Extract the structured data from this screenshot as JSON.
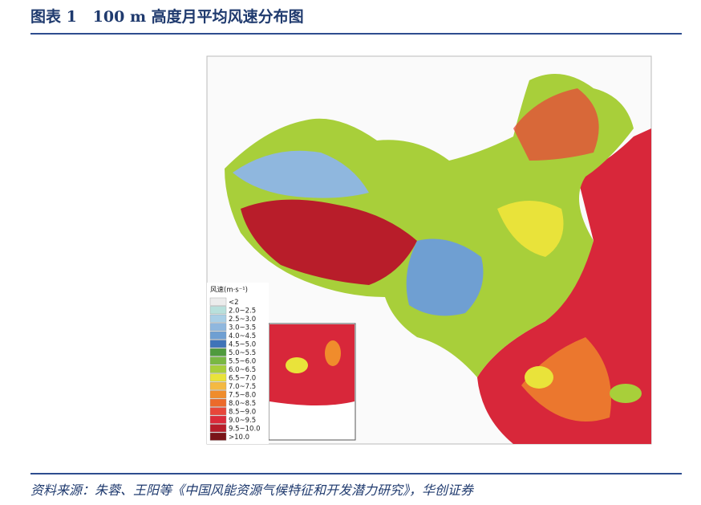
{
  "header": {
    "title": "图表 1   100 m 高度月平均风速分布图"
  },
  "legend": {
    "title": "风速(m·s⁻¹)",
    "items": [
      {
        "label": "<2",
        "color": "#ececec"
      },
      {
        "label": "2.0~2.5",
        "color": "#b8e0dc"
      },
      {
        "label": "2.5~3.0",
        "color": "#a9cfe6"
      },
      {
        "label": "3.0~3.5",
        "color": "#8fb7de"
      },
      {
        "label": "4.0~4.5",
        "color": "#6f9fd2"
      },
      {
        "label": "4.5~5.0",
        "color": "#3f73b8"
      },
      {
        "label": "5.0~5.5",
        "color": "#4f9a3e"
      },
      {
        "label": "5.5~6.0",
        "color": "#79b843"
      },
      {
        "label": "6.0~6.5",
        "color": "#a8cf3a"
      },
      {
        "label": "6.5~7.0",
        "color": "#e9e33a"
      },
      {
        "label": "7.0~7.5",
        "color": "#f4b942"
      },
      {
        "label": "7.5~8.0",
        "color": "#f08c2c"
      },
      {
        "label": "8.0~8.5",
        "color": "#ec6a2a"
      },
      {
        "label": "8.5~9.0",
        "color": "#e8463a"
      },
      {
        "label": "9.0~9.5",
        "color": "#dc2a3a"
      },
      {
        "label": "9.5~10.0",
        "color": "#b81d2a"
      },
      {
        "label": ">10.0",
        "color": "#7a1418"
      }
    ]
  },
  "source": "资料来源：朱蓉、王阳等《中国风能资源气候特征和开发潜力研究》，华创证券"
}
